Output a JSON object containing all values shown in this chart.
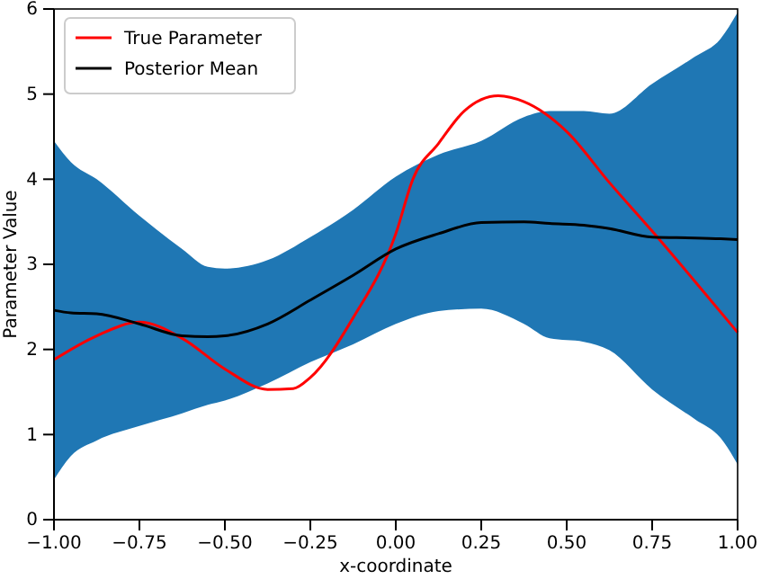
{
  "chart_data": {
    "type": "line",
    "xlabel": "x-coordinate",
    "ylabel": "Parameter Value",
    "xlim": [
      -1,
      1
    ],
    "ylim": [
      0,
      6
    ],
    "xticks": [
      {
        "value": -1,
        "label": "−1.00"
      },
      {
        "value": -0.75,
        "label": "−0.75"
      },
      {
        "value": -0.5,
        "label": "−0.50"
      },
      {
        "value": -0.25,
        "label": "−0.25"
      },
      {
        "value": 0,
        "label": "0.00"
      },
      {
        "value": 0.25,
        "label": "0.25"
      },
      {
        "value": 0.5,
        "label": "0.50"
      },
      {
        "value": 0.75,
        "label": "0.75"
      },
      {
        "value": 1,
        "label": "1.00"
      }
    ],
    "yticks": [
      0,
      1,
      2,
      3,
      4,
      5,
      6
    ],
    "legend": "top left",
    "grid": false,
    "marker": "none",
    "line_style": "solid",
    "series": [
      {
        "name": "True Parameter",
        "color": "#ff0000",
        "x": [
          -1,
          -0.875,
          -0.75,
          -0.625,
          -0.5,
          -0.375,
          -0.3,
          -0.25,
          -0.125,
          0,
          0.05,
          0.125,
          0.2,
          0.3,
          0.375,
          0.5,
          0.625,
          0.75,
          0.875,
          1
        ],
        "values": [
          1.88,
          2.16,
          2.32,
          2.13,
          1.77,
          1.53,
          1.54,
          1.67,
          2.37,
          3.36,
          4.0,
          4.42,
          4.8,
          4.98,
          4.91,
          4.56,
          3.96,
          3.39,
          2.8,
          2.2
        ]
      },
      {
        "name": "Posterior Mean",
        "color": "#000000",
        "x": [
          -1,
          -0.95,
          -0.875,
          -0.75,
          -0.625,
          -0.55,
          -0.5,
          -0.375,
          -0.25,
          -0.125,
          0,
          0.125,
          0.25,
          0.375,
          0.45,
          0.55,
          0.625,
          0.75,
          0.875,
          0.95,
          1
        ],
        "values": [
          2.46,
          2.43,
          2.42,
          2.3,
          2.16,
          2.15,
          2.16,
          2.3,
          2.58,
          2.87,
          3.18,
          3.36,
          3.49,
          3.5,
          3.48,
          3.46,
          3.42,
          3.32,
          3.31,
          3.3,
          3.29
        ],
        "upper": [
          4.45,
          4.2,
          4.0,
          3.57,
          3.18,
          2.97,
          2.95,
          3.05,
          3.32,
          3.64,
          4.03,
          4.29,
          4.45,
          4.73,
          4.8,
          4.8,
          4.77,
          5.12,
          5.44,
          5.65,
          5.96
        ],
        "lower": [
          0.47,
          0.75,
          0.93,
          1.1,
          1.25,
          1.35,
          1.4,
          1.6,
          1.85,
          2.06,
          2.3,
          2.45,
          2.48,
          2.3,
          2.13,
          2.09,
          1.99,
          1.53,
          1.18,
          0.96,
          0.65
        ]
      }
    ]
  }
}
